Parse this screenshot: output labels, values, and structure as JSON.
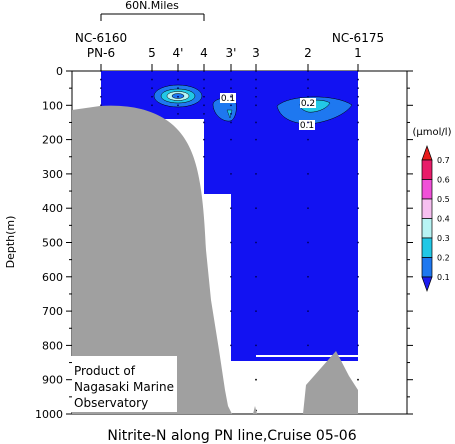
{
  "chart_data": {
    "type": "heatmap",
    "title": "Nitrite-N along PN line,Cruise 05-06",
    "ylabel": "Depth(m)",
    "ylim": [
      0,
      1000
    ],
    "y_ticks": [
      0,
      100,
      200,
      300,
      400,
      500,
      600,
      700,
      800,
      900,
      1000
    ],
    "x_stations": [
      "PN-6",
      "5",
      "4'",
      "4",
      "3'",
      "3",
      "2",
      "1"
    ],
    "x_end_labels": {
      "left": "NC-6160",
      "right": "NC-6175"
    },
    "scale_bar_label": "60N.Miles",
    "colorbar": {
      "unit": "(μmol/l)",
      "levels": [
        0.1,
        0.2,
        0.3,
        0.4,
        0.5,
        0.6,
        0.7
      ],
      "colors": [
        "#1c1cf0",
        "#1e78f0",
        "#22c8e6",
        "#b8f4f4",
        "#f6c0f0",
        "#f050d8",
        "#e81c6a",
        "#e81c1c"
      ]
    },
    "contour_labels": [
      "0.1",
      "0.2",
      "0.1"
    ],
    "annotation": [
      "Product of",
      "Nagasaki Marine",
      "Observatory"
    ],
    "grid": false
  },
  "colors": {
    "background_field": "#1212f2",
    "seafloor": "#a0a0a0"
  }
}
